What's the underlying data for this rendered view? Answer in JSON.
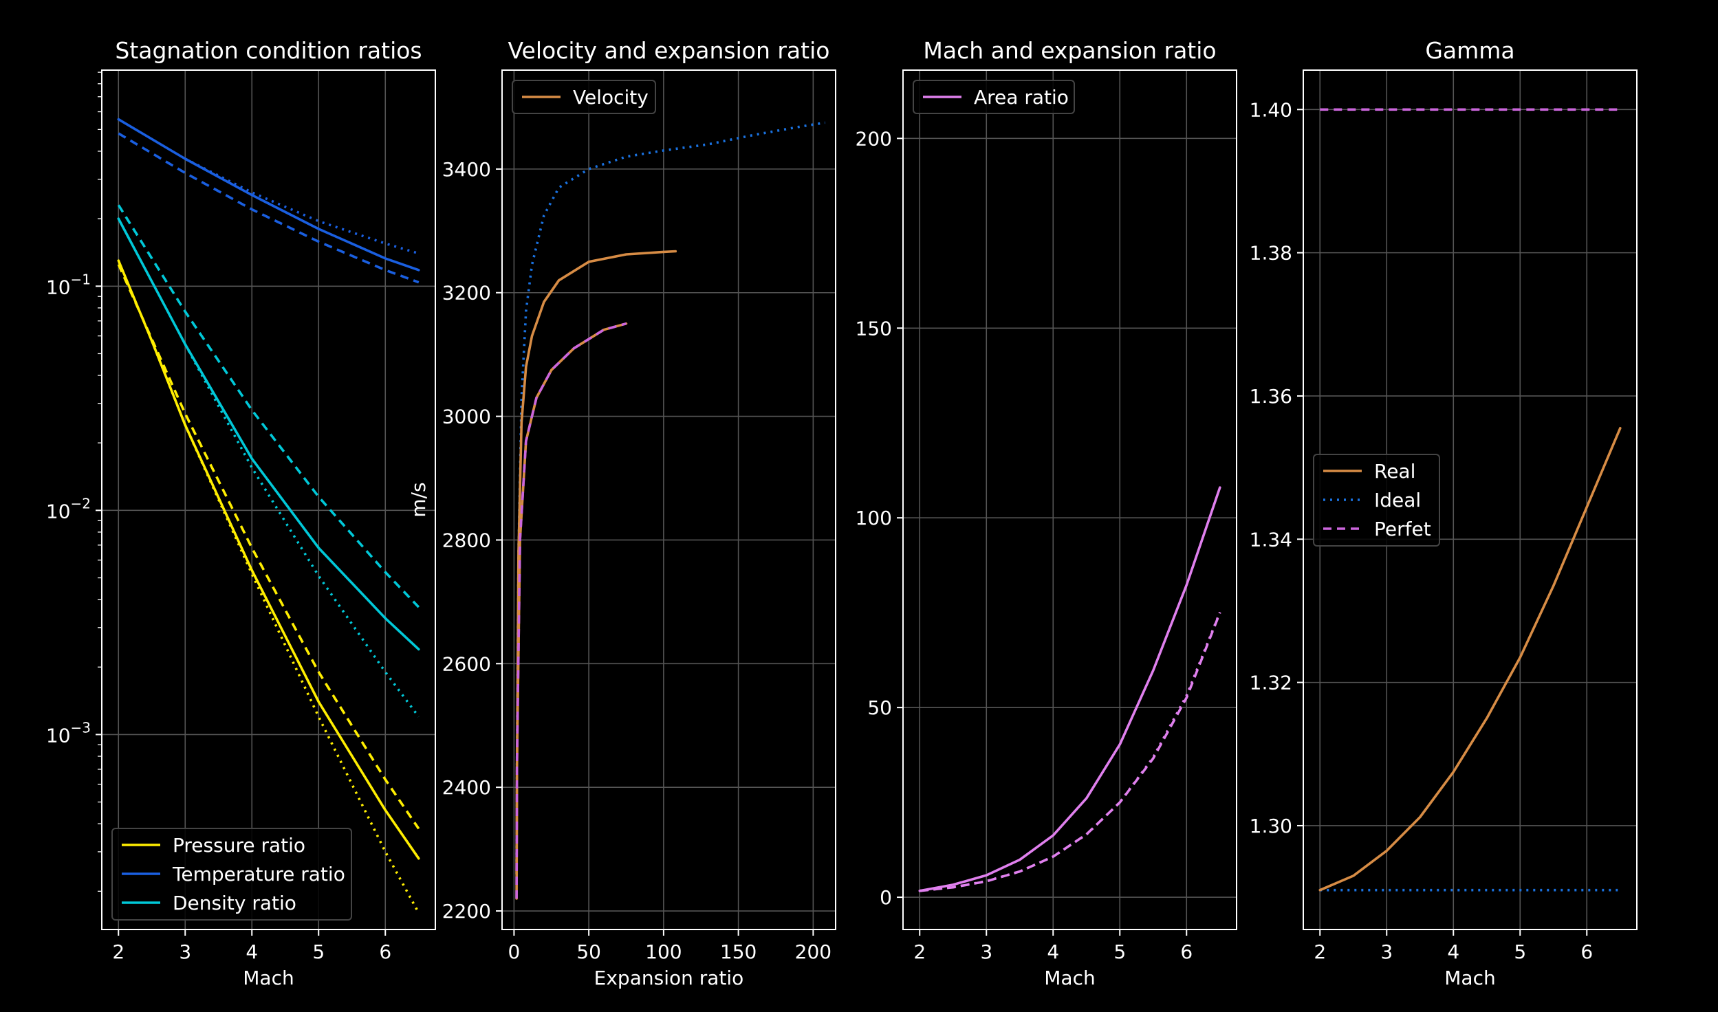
{
  "figure": {
    "background": "#000000",
    "fg": "#ffffff",
    "grid": "#555555"
  },
  "chart_data": [
    {
      "id": "stag",
      "type": "line",
      "title": "Stagnation condition ratios",
      "xlabel": "Mach",
      "ylabel": "",
      "yscale": "log",
      "xlim": [
        1.75,
        6.75
      ],
      "ylim": [
        0.000135,
        0.92
      ],
      "xticks": [
        2,
        3,
        4,
        5,
        6
      ],
      "yticks": [
        0.001,
        0.01,
        0.1
      ],
      "ytick_labels": [
        [
          "10",
          "−3"
        ],
        [
          "10",
          "−2"
        ],
        [
          "10",
          "−1"
        ]
      ],
      "grid": true,
      "legend_position": "lower-left",
      "legend": [
        {
          "label": "Pressure ratio",
          "color": "#ffee00",
          "dash": ""
        },
        {
          "label": "Temperature ratio",
          "color": "#1a5fe0",
          "dash": ""
        },
        {
          "label": "Density ratio",
          "color": "#00c8d8",
          "dash": ""
        }
      ],
      "series": [
        {
          "color": "#1a5fe0",
          "dash": "",
          "x": [
            2,
            3,
            4,
            5,
            6,
            6.5
          ],
          "y": [
            0.555,
            0.37,
            0.255,
            0.18,
            0.133,
            0.118
          ]
        },
        {
          "color": "#1a5fe0",
          "dash": "12,8",
          "x": [
            2,
            3,
            4,
            5,
            6,
            6.5
          ],
          "y": [
            0.48,
            0.32,
            0.22,
            0.158,
            0.118,
            0.104
          ]
        },
        {
          "color": "#1a5fe0",
          "dash": "3,7",
          "x": [
            3,
            4,
            5,
            6,
            6.5
          ],
          "y": [
            0.37,
            0.262,
            0.195,
            0.155,
            0.14
          ]
        },
        {
          "color": "#00c8d8",
          "dash": "",
          "x": [
            2,
            3,
            4,
            5,
            6,
            6.5
          ],
          "y": [
            0.2,
            0.055,
            0.017,
            0.0068,
            0.0033,
            0.0024
          ]
        },
        {
          "color": "#00c8d8",
          "dash": "12,8",
          "x": [
            2,
            3,
            4,
            5,
            6,
            6.5
          ],
          "y": [
            0.23,
            0.077,
            0.028,
            0.0115,
            0.0053,
            0.0037
          ]
        },
        {
          "color": "#00c8d8",
          "dash": "3,7",
          "x": [
            3,
            4,
            5,
            6,
            6.5
          ],
          "y": [
            0.055,
            0.0155,
            0.0051,
            0.0019,
            0.0012
          ]
        },
        {
          "color": "#ffee00",
          "dash": "",
          "x": [
            2,
            2.5,
            3,
            4,
            5,
            6,
            6.5
          ],
          "y": [
            0.13,
            0.057,
            0.024,
            0.0054,
            0.0014,
            0.00046,
            0.00028
          ]
        },
        {
          "color": "#ffee00",
          "dash": "12,8",
          "x": [
            2,
            2.5,
            3,
            4,
            5,
            6,
            6.5
          ],
          "y": [
            0.125,
            0.058,
            0.027,
            0.0068,
            0.0019,
            0.00063,
            0.00038
          ]
        },
        {
          "color": "#ffee00",
          "dash": "3,7",
          "x": [
            2.5,
            3,
            4,
            5,
            6,
            6.5
          ],
          "y": [
            0.057,
            0.024,
            0.0052,
            0.0012,
            0.0003,
            0.00016
          ]
        }
      ]
    },
    {
      "id": "vel",
      "type": "line",
      "title": "Velocity and expansion ratio",
      "xlabel": "Expansion ratio",
      "ylabel": "m/s",
      "yscale": "linear",
      "xlim": [
        -8,
        215
      ],
      "ylim": [
        2170,
        3560
      ],
      "xticks": [
        0,
        50,
        100,
        150,
        200
      ],
      "yticks": [
        2200,
        2400,
        2600,
        2800,
        3000,
        3200,
        3400
      ],
      "grid": true,
      "legend_position": "upper-left",
      "legend": [
        {
          "label": "Velocity",
          "color": "#d78c45",
          "dash": ""
        }
      ],
      "series": [
        {
          "color": "#1a72e0",
          "dash": "3,7",
          "x": [
            1.69,
            2,
            3,
            5,
            8,
            12,
            20,
            30,
            50,
            75,
            100,
            130,
            160,
            190,
            208
          ],
          "y": [
            2280,
            2450,
            2780,
            3030,
            3170,
            3245,
            3325,
            3370,
            3400,
            3420,
            3430,
            3440,
            3455,
            3468,
            3475
          ]
        },
        {
          "color": "#d78c45",
          "dash": "",
          "x": [
            1.69,
            2,
            3,
            5,
            8,
            12,
            20,
            30,
            50,
            75,
            100,
            108
          ],
          "y": [
            2260,
            2430,
            2780,
            2990,
            3080,
            3130,
            3185,
            3220,
            3250,
            3262,
            3266,
            3267
          ]
        },
        {
          "color": "#d78c45",
          "dash": "",
          "x": [
            1.69,
            2,
            4,
            8,
            15,
            25,
            40,
            60,
            75
          ],
          "y": [
            2220,
            2440,
            2800,
            2960,
            3030,
            3075,
            3110,
            3140,
            3150
          ]
        },
        {
          "color": "#cc66dd",
          "dash": "12,8",
          "x": [
            1.69,
            2,
            4,
            8,
            15,
            25,
            40,
            60,
            75
          ],
          "y": [
            2220,
            2440,
            2800,
            2960,
            3030,
            3075,
            3110,
            3140,
            3150
          ]
        }
      ]
    },
    {
      "id": "area",
      "type": "line",
      "title": "Mach and expansion ratio",
      "xlabel": "Mach",
      "ylabel": "",
      "yscale": "linear",
      "xlim": [
        1.75,
        6.75
      ],
      "ylim": [
        -8.5,
        218
      ],
      "xticks": [
        2,
        3,
        4,
        5,
        6
      ],
      "yticks": [
        0,
        50,
        100,
        150,
        200
      ],
      "grid": true,
      "legend_position": "upper-left",
      "legend": [
        {
          "label": "Area ratio",
          "color": "#e080ee",
          "dash": ""
        }
      ],
      "series": [
        {
          "color": "#e080ee",
          "dash": "",
          "x": [
            2,
            2.5,
            3,
            3.5,
            4,
            4.5,
            5,
            5.5,
            6,
            6.5
          ],
          "y": [
            1.69,
            3.3,
            5.8,
            9.9,
            16.3,
            26.1,
            40.3,
            59.8,
            82.3,
            108
          ]
        },
        {
          "color": "#e080ee",
          "dash": "12,8",
          "x": [
            2,
            2.5,
            3,
            3.5,
            4,
            4.5,
            5,
            5.5,
            6,
            6.5
          ],
          "y": [
            1.69,
            2.6,
            4.2,
            6.8,
            10.7,
            16.6,
            25.0,
            36.6,
            52.6,
            75
          ]
        },
        {
          "color": "#e080ee",
          "dash": "3,7",
          "x": [
            2,
            2.5,
            3,
            3.5,
            4,
            4.5,
            5,
            5.5,
            6,
            6.5
          ],
          "y": [
            1.69,
            2.64,
            4.23,
            6.79,
            10.72,
            16.56,
            25.0,
            36.87,
            53.18,
            75.13
          ]
        }
      ]
    },
    {
      "id": "gamma",
      "type": "line",
      "title": "Gamma",
      "xlabel": "Mach",
      "ylabel": "",
      "yscale": "linear",
      "xlim": [
        1.75,
        6.75
      ],
      "ylim": [
        1.2855,
        1.4055
      ],
      "xticks": [
        2,
        3,
        4,
        5,
        6
      ],
      "yticks": [
        1.3,
        1.32,
        1.34,
        1.36,
        1.38,
        1.4
      ],
      "ytick_labels": [
        "1.30",
        "1.32",
        "1.34",
        "1.36",
        "1.38",
        "1.40"
      ],
      "grid": true,
      "legend_position": "center-left",
      "legend": [
        {
          "label": "Real",
          "color": "#d78c45",
          "dash": ""
        },
        {
          "label": "Ideal",
          "color": "#1a72e0",
          "dash": "3,7"
        },
        {
          "label": "Perfet",
          "color": "#cc66dd",
          "dash": "12,8"
        }
      ],
      "series": [
        {
          "color": "#cc66dd",
          "dash": "12,8",
          "x": [
            2,
            6.5
          ],
          "y": [
            1.4,
            1.4
          ]
        },
        {
          "color": "#1a72e0",
          "dash": "3,7",
          "x": [
            2,
            6.5
          ],
          "y": [
            1.291,
            1.291
          ]
        },
        {
          "color": "#d78c45",
          "dash": "",
          "x": [
            2,
            2.5,
            3,
            3.5,
            4,
            4.5,
            5,
            5.5,
            6,
            6.5
          ],
          "y": [
            1.291,
            1.293,
            1.2965,
            1.3012,
            1.3075,
            1.315,
            1.3235,
            1.3335,
            1.3445,
            1.3555
          ]
        }
      ]
    }
  ]
}
